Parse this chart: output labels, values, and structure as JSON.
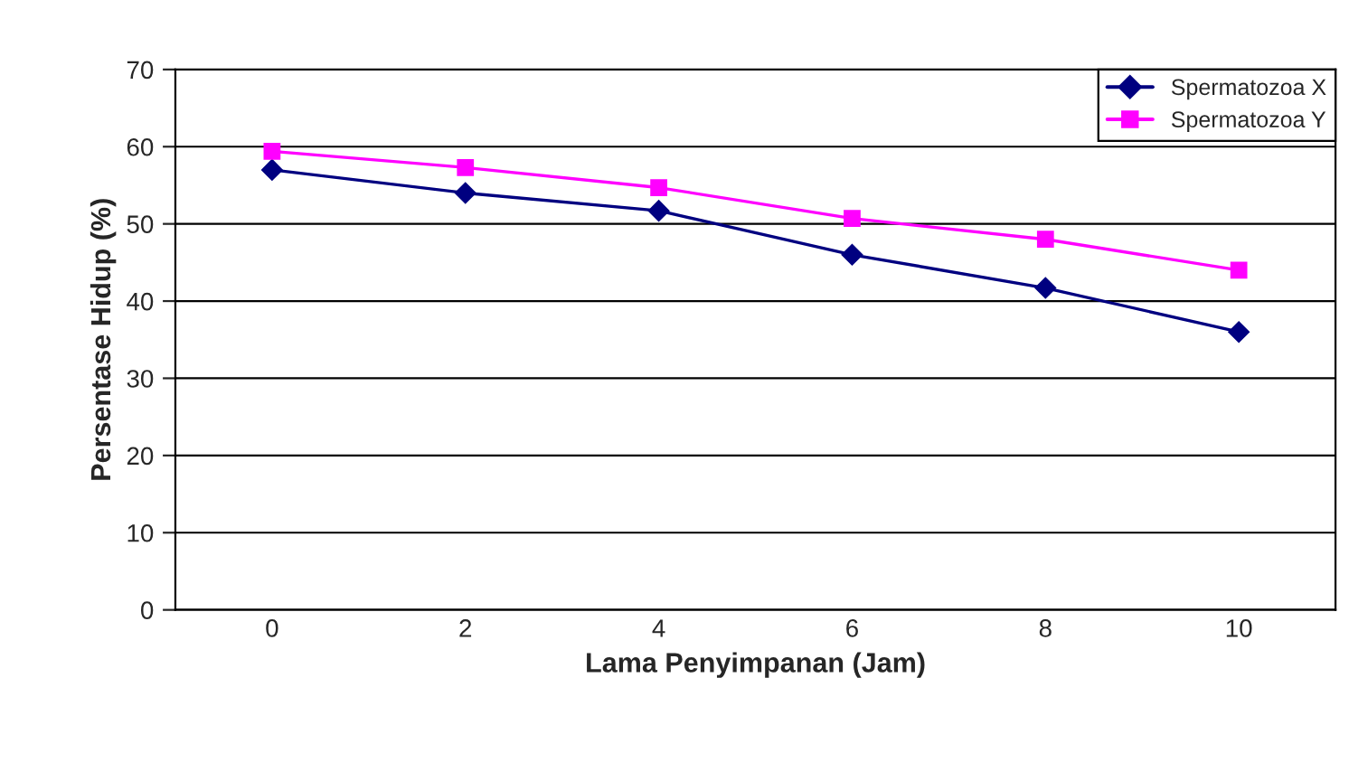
{
  "chart_data": {
    "type": "line",
    "xlabel": "Lama Penyimpanan (Jam)",
    "ylabel": "Persentase Hidup (%)",
    "categories": [
      "0",
      "2",
      "4",
      "6",
      "8",
      "10"
    ],
    "series": [
      {
        "name": "Spermatozoa X",
        "color": "#000080",
        "marker": "diamond",
        "values": [
          57,
          54,
          51.7,
          46,
          41.7,
          36
        ]
      },
      {
        "name": "Spermatozoa Y",
        "color": "#ff00ff",
        "marker": "square",
        "values": [
          59.4,
          57.3,
          54.7,
          50.7,
          48,
          44
        ]
      }
    ],
    "ylim": [
      0,
      70
    ],
    "yticks": [
      0,
      10,
      20,
      30,
      40,
      50,
      60,
      70
    ],
    "grid": "y",
    "legend": "top right",
    "line_style": "solid"
  }
}
